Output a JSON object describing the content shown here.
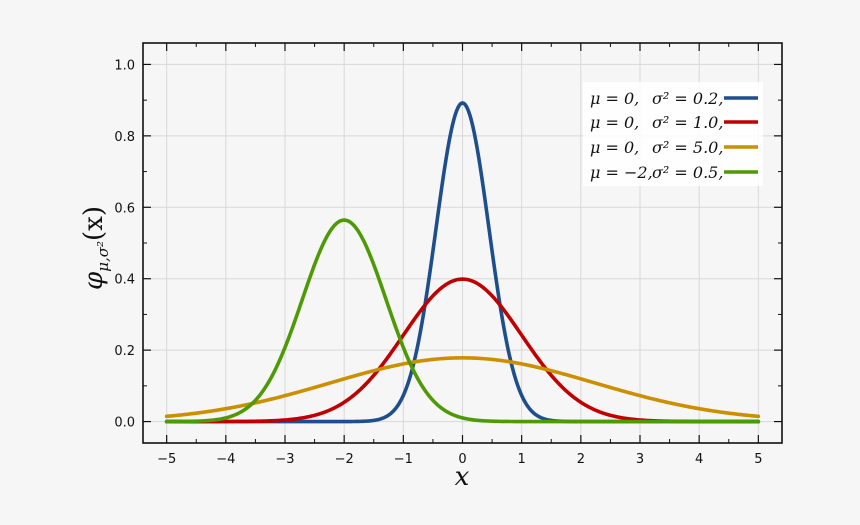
{
  "chart_data": {
    "type": "line",
    "xlabel": "x",
    "ylabel": {
      "symbol": "φ",
      "subscript": "μ,σ²",
      "argument": "(x)"
    },
    "xlim": [
      -5.4,
      5.4
    ],
    "ylim": [
      -0.06,
      1.06
    ],
    "x_ticks": [
      -5,
      -4,
      -3,
      -2,
      -1,
      0,
      1,
      2,
      3,
      4,
      5
    ],
    "x_tick_labels": [
      "−5",
      "−4",
      "−3",
      "−2",
      "−1",
      "0",
      "1",
      "2",
      "3",
      "4",
      "5"
    ],
    "y_ticks": [
      0.0,
      0.2,
      0.4,
      0.6,
      0.8,
      1.0
    ],
    "y_tick_labels": [
      "0.0",
      "0.2",
      "0.4",
      "0.6",
      "0.8",
      "1.0"
    ],
    "grid": true,
    "legend_position": "top-right",
    "series": [
      {
        "name": "μ = 0, σ² = 0.2,",
        "mu_label": "μ = 0,",
        "sigma_label": "σ² = 0.2,",
        "mean": 0,
        "variance": 0.2,
        "color": "#1f4e8c",
        "points": [
          [
            -5,
            0.0
          ],
          [
            -2,
            0.0
          ],
          [
            -1,
            0.007
          ],
          [
            -0.5,
            0.479
          ],
          [
            0,
            0.892
          ],
          [
            0.5,
            0.479
          ],
          [
            1,
            0.007
          ],
          [
            2,
            0.0
          ],
          [
            5,
            0.0
          ]
        ]
      },
      {
        "name": "μ = 0, σ² = 1.0,",
        "mu_label": "μ = 0,",
        "sigma_label": "σ² = 1.0,",
        "mean": 0,
        "variance": 1.0,
        "color": "#c00000",
        "points": [
          [
            -5,
            0.0
          ],
          [
            -3,
            0.004
          ],
          [
            -2,
            0.054
          ],
          [
            -1,
            0.242
          ],
          [
            0,
            0.399
          ],
          [
            1,
            0.242
          ],
          [
            2,
            0.054
          ],
          [
            3,
            0.004
          ],
          [
            5,
            0.0
          ]
        ]
      },
      {
        "name": "μ = 0, σ² = 5.0,",
        "mu_label": "μ = 0,",
        "sigma_label": "σ² = 5.0,",
        "mean": 0,
        "variance": 5.0,
        "color": "#cc8f00",
        "points": [
          [
            -5,
            0.015
          ],
          [
            -4,
            0.036
          ],
          [
            -3,
            0.073
          ],
          [
            -2,
            0.119
          ],
          [
            -1,
            0.161
          ],
          [
            0,
            0.178
          ],
          [
            1,
            0.161
          ],
          [
            2,
            0.119
          ],
          [
            3,
            0.073
          ],
          [
            4,
            0.036
          ],
          [
            5,
            0.015
          ]
        ]
      },
      {
        "name": "μ = −2, σ² = 0.5,",
        "mu_label": "μ = −2,",
        "sigma_label": "σ² = 0.5,",
        "mean": -2,
        "variance": 0.5,
        "color": "#4e9a06",
        "points": [
          [
            -5,
            0.0
          ],
          [
            -4,
            0.01
          ],
          [
            -3,
            0.208
          ],
          [
            -2,
            0.564
          ],
          [
            -1,
            0.208
          ],
          [
            0,
            0.01
          ],
          [
            1,
            0.0
          ],
          [
            5,
            0.0
          ]
        ]
      }
    ]
  }
}
